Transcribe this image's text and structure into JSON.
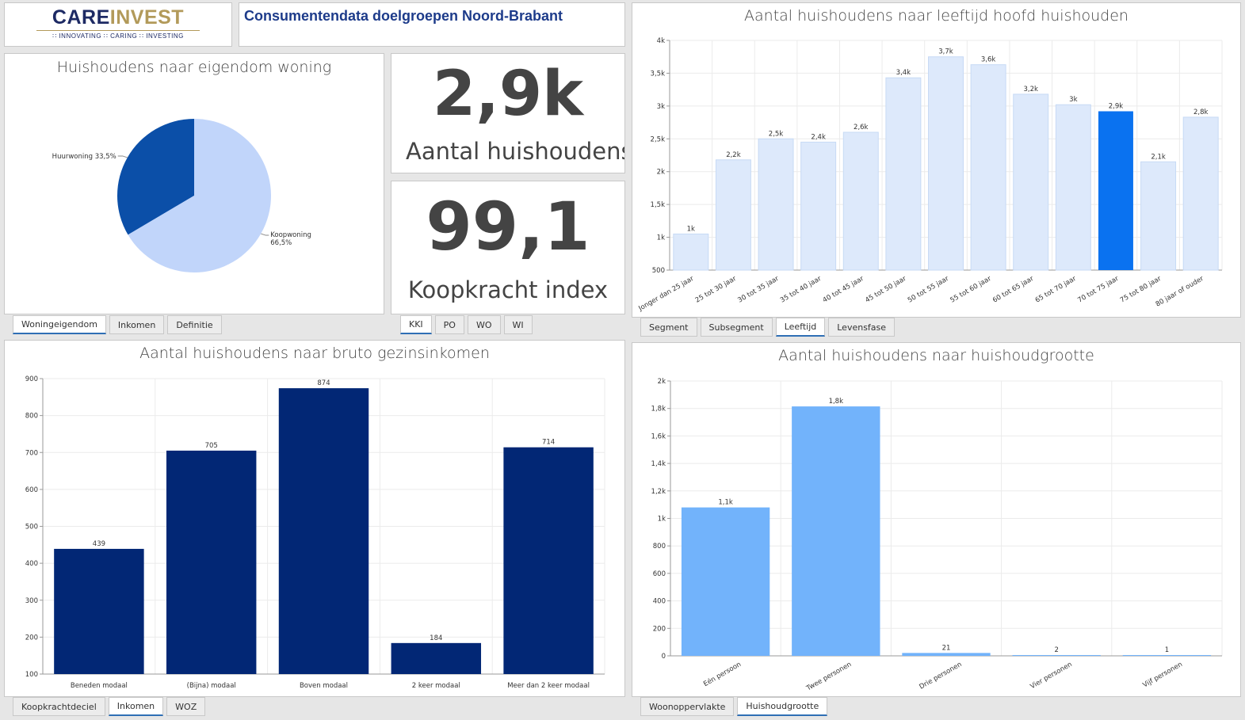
{
  "logo": {
    "brand_a": "CARE",
    "brand_b": "INVEST",
    "tagline": "∷ INNOVATING   ∷ CARING   ∷ INVESTING"
  },
  "header": {
    "title": "Consumentendata doelgroepen Noord-Brabant"
  },
  "kpi1": {
    "value": "2,9k",
    "label": "Aantal huishoudens"
  },
  "kpi2": {
    "value": "99,1",
    "label": "Koopkracht index"
  },
  "panel_pie": {
    "title": "Huishoudens naar eigendom woning",
    "tabs": [
      "Woningeigendom",
      "Inkomen",
      "Definitie"
    ],
    "active_tab": 0
  },
  "kpi_tabs": {
    "tabs": [
      "KKI",
      "PO",
      "WO",
      "WI"
    ],
    "active_tab": 0
  },
  "panel_age": {
    "title": "Aantal huishoudens naar leeftijd hoofd huishouden",
    "tabs": [
      "Segment",
      "Subsegment",
      "Leeftijd",
      "Levensfase"
    ],
    "active_tab": 2
  },
  "panel_income": {
    "title": "Aantal huishoudens naar bruto gezinsinkomen",
    "tabs": [
      "Koopkrachtdeciel",
      "Inkomen",
      "WOZ"
    ],
    "active_tab": 1
  },
  "panel_size": {
    "title": "Aantal huishoudens naar huishoudgrootte",
    "tabs": [
      "Woonoppervlakte",
      "Huishoudgrootte"
    ],
    "active_tab": 1
  },
  "colors": {
    "pie_dark": "#0b4fa8",
    "pie_light": "#c1d5fa",
    "age_bar": "#dde9fb",
    "age_highlight": "#0a72f0",
    "income_bar": "#022775",
    "size_bar": "#72b3fb"
  },
  "chart_data": [
    {
      "type": "pie",
      "slices": [
        {
          "name": "Huurwoning",
          "label": "Huurwoning 33,5%",
          "value": 33.5
        },
        {
          "name": "Koopwoning",
          "label": "Koopwoning\n66,5%",
          "value": 66.5
        }
      ]
    },
    {
      "type": "bar",
      "categories": [
        "Jonger dan 25 jaar",
        "25 tot 30 jaar",
        "30 tot 35 jaar",
        "35 tot 40 jaar",
        "40 tot 45 jaar",
        "45 tot 50 jaar",
        "50 tot 55 jaar",
        "55 tot 60 jaar",
        "60 tot 65 jaar",
        "65 tot 70 jaar",
        "70 tot 75 jaar",
        "75 tot 80 jaar",
        "80 jaar of ouder"
      ],
      "values": [
        1050,
        2180,
        2500,
        2450,
        2600,
        3430,
        3750,
        3630,
        3180,
        3020,
        2920,
        2150,
        2830
      ],
      "data_labels": [
        "1k",
        "2,2k",
        "2,5k",
        "2,4k",
        "2,6k",
        "3,4k",
        "3,7k",
        "3,6k",
        "3,2k",
        "3k",
        "2,9k",
        "2,1k",
        "2,8k"
      ],
      "highlight_index": 10,
      "ylim": [
        500,
        4000
      ],
      "yticks": [
        500,
        1000,
        1500,
        2000,
        2500,
        3000,
        3500,
        4000
      ],
      "ytick_labels": [
        "500",
        "1k",
        "1,5k",
        "2k",
        "2,5k",
        "3k",
        "3,5k",
        "4k"
      ],
      "grid": true
    },
    {
      "type": "bar",
      "categories": [
        "Beneden modaal",
        "(Bijna) modaal",
        "Boven modaal",
        "2 keer modaal",
        "Meer dan 2 keer modaal"
      ],
      "values": [
        439,
        705,
        874,
        184,
        714
      ],
      "data_labels": [
        "439",
        "705",
        "874",
        "184",
        "714"
      ],
      "ylim": [
        100,
        900
      ],
      "yticks": [
        100,
        200,
        300,
        400,
        500,
        600,
        700,
        800,
        900
      ],
      "ytick_labels": [
        "100",
        "200",
        "300",
        "400",
        "500",
        "600",
        "700",
        "800",
        "900"
      ],
      "grid": true
    },
    {
      "type": "bar",
      "categories": [
        "Eén persoon",
        "Twee personen",
        "Drie personen",
        "Vier personen",
        "Vijf personen"
      ],
      "values": [
        1080,
        1815,
        21,
        2,
        1
      ],
      "data_labels": [
        "1,1k",
        "1,8k",
        "21",
        "2",
        "1"
      ],
      "ylim": [
        0,
        2000
      ],
      "yticks": [
        0,
        200,
        400,
        600,
        800,
        1000,
        1200,
        1400,
        1600,
        1800,
        2000
      ],
      "ytick_labels": [
        "0",
        "200",
        "400",
        "600",
        "800",
        "1k",
        "1,2k",
        "1,4k",
        "1,6k",
        "1,8k",
        "2k"
      ],
      "grid": true
    }
  ]
}
